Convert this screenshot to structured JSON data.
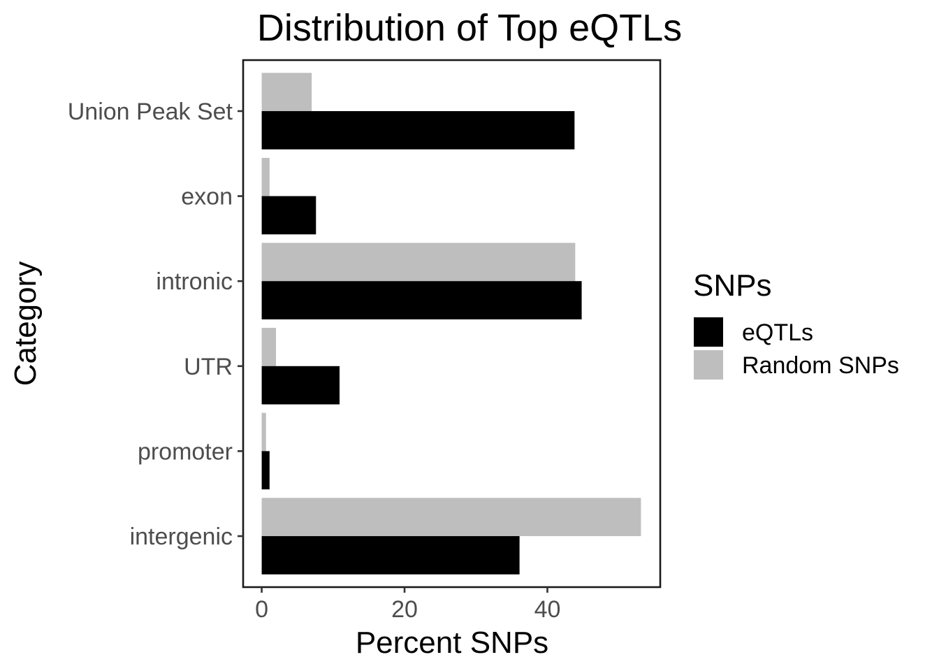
{
  "chart_data": {
    "type": "bar",
    "orientation": "horizontal",
    "title": "Distribution of Top eQTLs",
    "xlabel": "Percent SNPs",
    "ylabel": "Category",
    "categories": [
      "Union Peak Set",
      "exon",
      "intronic",
      "UTR",
      "promoter",
      "intergenic"
    ],
    "series": [
      {
        "name": "eQTLs",
        "color": "#000000",
        "values": [
          43.8,
          7.6,
          44.8,
          10.9,
          1.1,
          36.1
        ]
      },
      {
        "name": "Random SNPs",
        "color": "#bebebe",
        "values": [
          7.0,
          1.1,
          43.9,
          2.0,
          0.6,
          53.1
        ]
      }
    ],
    "xlim": [
      -2.6,
      55.8
    ],
    "xticks": [
      0,
      20,
      40
    ],
    "grid": false,
    "legend": {
      "title": "SNPs",
      "position": "right"
    }
  }
}
